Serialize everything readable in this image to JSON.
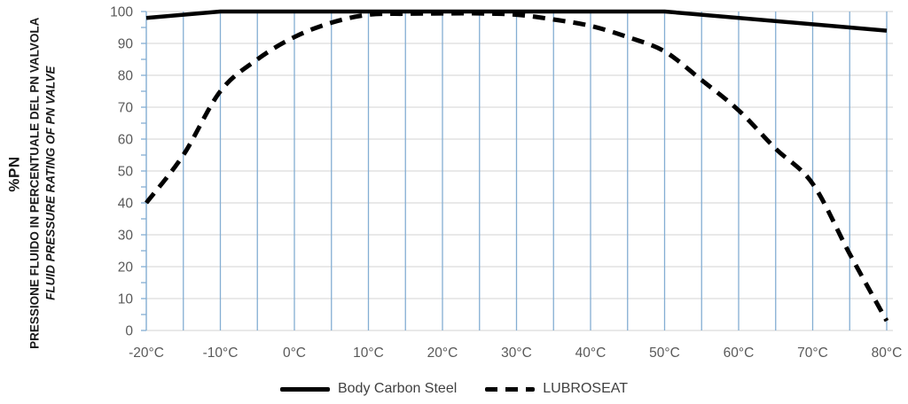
{
  "colors": {
    "curve": "#000000",
    "vertical_grid": "#84aed3",
    "horizontal_grid": "#e2e2e2",
    "axis_line": "#84aed3",
    "tick_text": "#595959",
    "legend_text": "#404040"
  },
  "chart_data": {
    "type": "line",
    "title": "",
    "xlabel": "",
    "ylabel": "%PN",
    "axis_labels": {
      "pn": "%PN",
      "italian": "PRESSIONE FLUIDO IN PERCENTUALE DEL PN VALVOLA",
      "english": "FLUID PRESSURE RATING OF PN VALVE"
    },
    "xlim": [
      -20,
      80
    ],
    "ylim": [
      0,
      100
    ],
    "x_unit": "°C",
    "x_ticks": [
      -20,
      -10,
      0,
      10,
      20,
      30,
      40,
      50,
      60,
      70,
      80
    ],
    "x_tick_labels": [
      "-20°C",
      "-10°C",
      "0°C",
      "10°C",
      "20°C",
      "30°C",
      "40°C",
      "50°C",
      "60°C",
      "70°C",
      "80°C"
    ],
    "y_ticks": [
      0,
      10,
      20,
      30,
      40,
      50,
      60,
      70,
      80,
      90,
      100
    ],
    "grid": {
      "vertical_step_degC": 5,
      "horizontal_step_pct": 10,
      "y_minor_tick_step": 5
    },
    "legend_position": "bottom",
    "series": [
      {
        "name": "Body Carbon Steel",
        "style": "solid",
        "points": [
          [
            -20,
            98
          ],
          [
            -10,
            100
          ],
          [
            50,
            100
          ],
          [
            80,
            94
          ]
        ]
      },
      {
        "name": "LUBROSEAT",
        "style": "dashed",
        "points": [
          [
            -20,
            40
          ],
          [
            -15,
            55
          ],
          [
            -10,
            75
          ],
          [
            -5,
            85
          ],
          [
            0,
            92
          ],
          [
            5,
            96.5
          ],
          [
            10,
            99
          ],
          [
            15,
            99.3
          ],
          [
            20,
            99.4
          ],
          [
            25,
            99.4
          ],
          [
            30,
            99
          ],
          [
            35,
            97.5
          ],
          [
            40,
            95.5
          ],
          [
            45,
            92
          ],
          [
            50,
            87.5
          ],
          [
            55,
            78.5
          ],
          [
            60,
            69
          ],
          [
            65,
            57
          ],
          [
            70,
            46
          ],
          [
            75,
            24
          ],
          [
            80,
            3
          ]
        ]
      }
    ]
  }
}
